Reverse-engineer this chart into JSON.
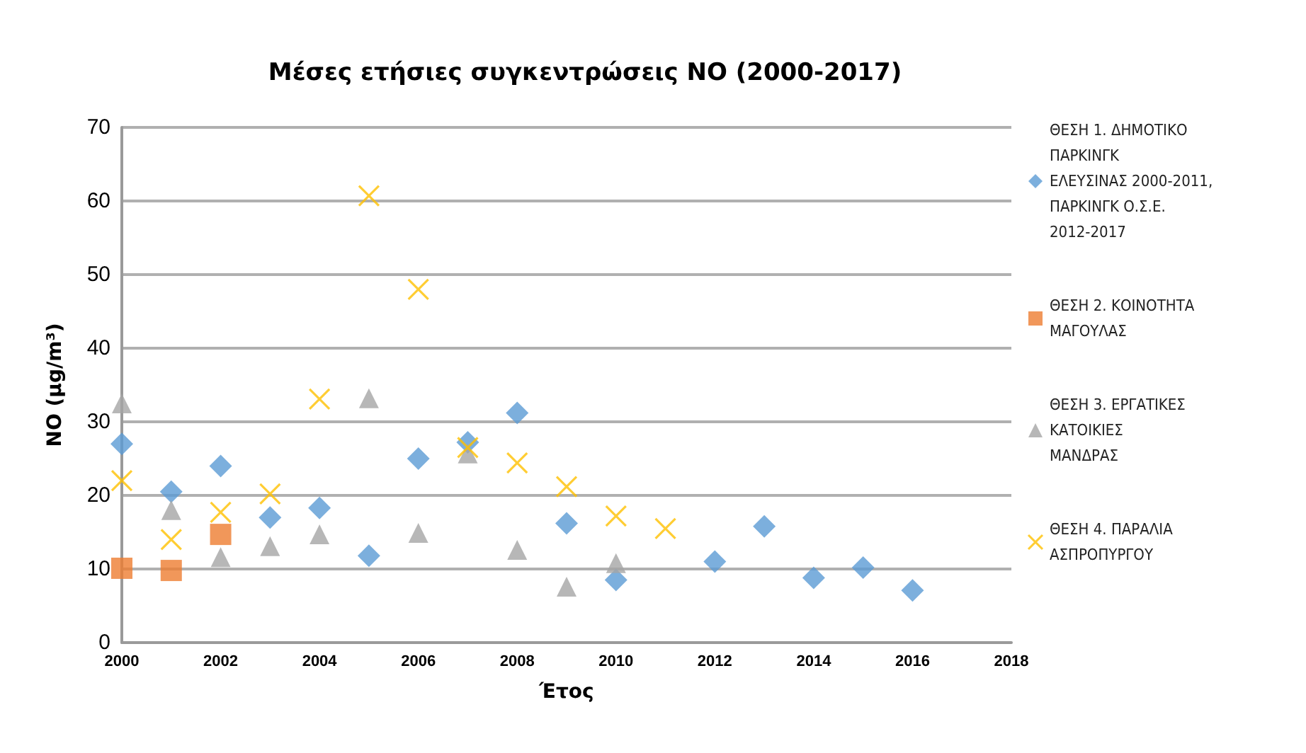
{
  "chart_data": {
    "type": "scatter",
    "title": "Μέσες ετήσιες συγκεντρώσεις NO (2000-2017)",
    "xlabel": "Έτος",
    "ylabel": "NO (μg/m³)",
    "xlim": [
      2000,
      2018
    ],
    "xticks": [
      2000,
      2002,
      2004,
      2006,
      2008,
      2010,
      2012,
      2014,
      2016,
      2018
    ],
    "ylim": [
      0,
      70
    ],
    "yticks": [
      0,
      10,
      20,
      30,
      40,
      50,
      60,
      70
    ],
    "grid": "y",
    "legend": "right",
    "series": [
      {
        "name": "ΘΕΣΗ 1. ΔΗΜΟΤΙΚΟ ΠΑΡΚΙΝΓΚ ΕΛΕΥΣΙΝΑΣ 2000-2011, ΠΑΡΚΙΝΓΚ Ο.Σ.Ε. 2012-2017",
        "color": "#5b9bd5",
        "marker": "diamond",
        "x": [
          2000,
          2001,
          2002,
          2003,
          2004,
          2005,
          2006,
          2007,
          2008,
          2009,
          2010,
          2012,
          2013,
          2014,
          2015,
          2016
        ],
        "values": [
          27,
          20.5,
          24,
          17,
          18.3,
          11.8,
          25,
          27.2,
          31.2,
          16.2,
          8.5,
          11,
          15.8,
          8.8,
          10.2,
          7.1
        ]
      },
      {
        "name": "ΘΕΣΗ 2. ΚΟΙΝΟΤΗΤΑ ΜΑΓΟΥΛΑΣ",
        "color": "#ed7d31",
        "marker": "square",
        "x": [
          2000,
          2001,
          2002
        ],
        "values": [
          10.1,
          9.8,
          14.7
        ]
      },
      {
        "name": "ΘΕΣΗ 3. ΕΡΓΑΤΙΚΕΣ ΚΑΤΟΙΚΙΕΣ ΜΑΝΔΡΑΣ",
        "color": "#a5a5a5",
        "marker": "triangle",
        "x": [
          2000,
          2001,
          2002,
          2003,
          2004,
          2005,
          2006,
          2007,
          2008,
          2009,
          2010
        ],
        "values": [
          32.5,
          18,
          11.6,
          13.1,
          14.7,
          33.2,
          14.9,
          25.7,
          12.6,
          7.6,
          10.8
        ]
      },
      {
        "name": "ΘΕΣΗ 4. ΠΑΡΑΛΙΑ ΑΣΠΡΟΠΥΡΓΟΥ",
        "color": "#ffc000",
        "marker": "cross",
        "x": [
          2000,
          2001,
          2002,
          2003,
          2004,
          2005,
          2006,
          2007,
          2008,
          2009,
          2010,
          2011
        ],
        "values": [
          22,
          14,
          17.7,
          20.2,
          33.1,
          60.7,
          48,
          26.5,
          24.4,
          21.2,
          17.2,
          15.5
        ]
      }
    ]
  }
}
